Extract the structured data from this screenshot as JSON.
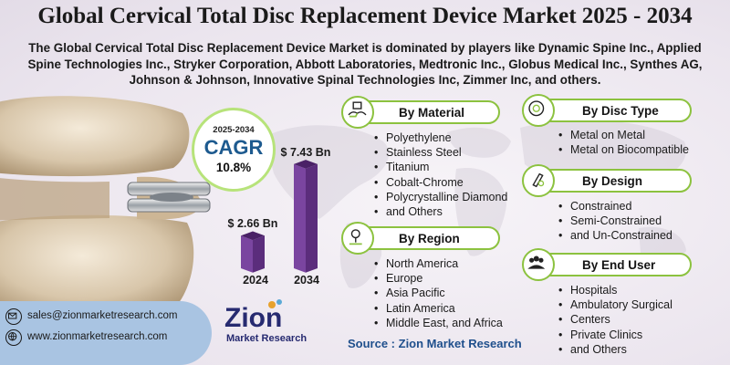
{
  "title": "Global Cervical Total Disc Replacement Device Market 2025 - 2034",
  "subtitle": "The Global Cervical Total Disc Replacement Device Market is dominated by players like Dynamic Spine Inc., Applied Spine Technologies Inc., Stryker Corporation, Abbott Laboratories, Medtronic Inc., Globus Medical Inc., Synthes AG, Johnson & Johnson, Innovative Spinal Technologies Inc, Zimmer Inc, and others.",
  "cagr": {
    "years": "2025-2034",
    "label": "CAGR",
    "value": "10.8%"
  },
  "chart_data": {
    "type": "bar",
    "categories": [
      "2024",
      "2034"
    ],
    "values": [
      2.66,
      7.43
    ],
    "value_labels": [
      "$ 2.66 Bn",
      "$ 7.43 Bn"
    ],
    "ylim": [
      0,
      8
    ]
  },
  "segments": {
    "material": {
      "title": "By Material",
      "icon": "materials-icon",
      "items": [
        "Polyethylene",
        "Stainless Steel",
        "Titanium",
        "Cobalt-Chrome",
        "Polycrystalline Diamond",
        "and Others"
      ]
    },
    "disc_type": {
      "title": "By Disc Type",
      "icon": "disc-icon",
      "items": [
        "Metal on Metal",
        "Metal on Biocompatible"
      ]
    },
    "design": {
      "title": "By Design",
      "icon": "design-icon",
      "items": [
        "Constrained",
        "Semi-Constrained",
        "and Un-Constrained"
      ]
    },
    "region": {
      "title": "By Region",
      "icon": "region-icon",
      "items": [
        "North America",
        "Europe",
        "Asia Pacific",
        "Latin America",
        "Middle East, and Africa"
      ]
    },
    "end_user": {
      "title": "By End User",
      "icon": "users-icon",
      "items": [
        "Hospitals",
        "Ambulatory Surgical",
        "Centers",
        "Private Clinics",
        "and Others"
      ]
    }
  },
  "contact": {
    "email": "sales@zionmarketresearch.com",
    "website": "www.zionmarketresearch.com"
  },
  "logo": {
    "word": "Zion",
    "sub": "Market Research"
  },
  "source": "Source : Zion Market Research",
  "colors": {
    "bar": "#5b2d7c",
    "bar_light": "#7a45a0",
    "accent_green": "#8cc23f",
    "cagr_blue": "#1d5a8f"
  }
}
